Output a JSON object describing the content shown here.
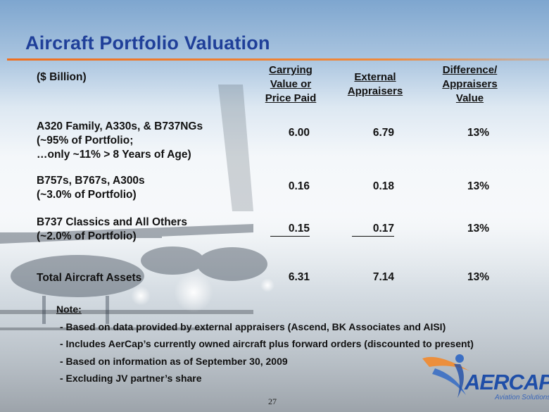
{
  "slide": {
    "title": "Aircraft Portfolio Valuation",
    "page_number": "27"
  },
  "table": {
    "unit_label": "($ Billion)",
    "headers": {
      "carrying": [
        "Carrying",
        "Value or",
        "Price Paid"
      ],
      "external": [
        "External",
        "Appraisers"
      ],
      "difference": [
        "Difference/",
        "Appraisers",
        "Value"
      ]
    },
    "rows": [
      {
        "label_lines": [
          "A320 Family, A330s, & B737NGs",
          "(~95% of Portfolio;",
          "…only ~11% > 8 Years of Age)"
        ],
        "carrying": "6.00",
        "external": "6.79",
        "difference": "13%"
      },
      {
        "label_lines": [
          "B757s, B767s, A300s",
          "(~3.0% of Portfolio)"
        ],
        "carrying": "0.16",
        "external": "0.18",
        "difference": "13%"
      },
      {
        "label_lines": [
          "B737 Classics and All Others",
          "(~2.0% of Portfolio)"
        ],
        "carrying": "0.15",
        "external": "0.17",
        "difference": "13%"
      },
      {
        "label_lines": [
          "Total Aircraft Assets"
        ],
        "carrying": "6.31",
        "external": "7.14",
        "difference": "13%"
      }
    ]
  },
  "notes": {
    "heading": "Note:",
    "items": [
      "- Based on data provided by external appraisers (Ascend, BK Associates and AISI)",
      "- Includes AerCap’s currently owned aircraft plus forward orders (discounted to present)",
      "- Based on information as of September 30, 2009",
      "- Excluding JV partner’s share"
    ]
  },
  "logo": {
    "name": "AERCAP",
    "tagline": "Aviation Solutions"
  },
  "colors": {
    "title": "#1f3f99",
    "accent_rule": "#f06f1f",
    "logo_blue": "#1f4ea8",
    "logo_orange": "#f28a2e"
  }
}
